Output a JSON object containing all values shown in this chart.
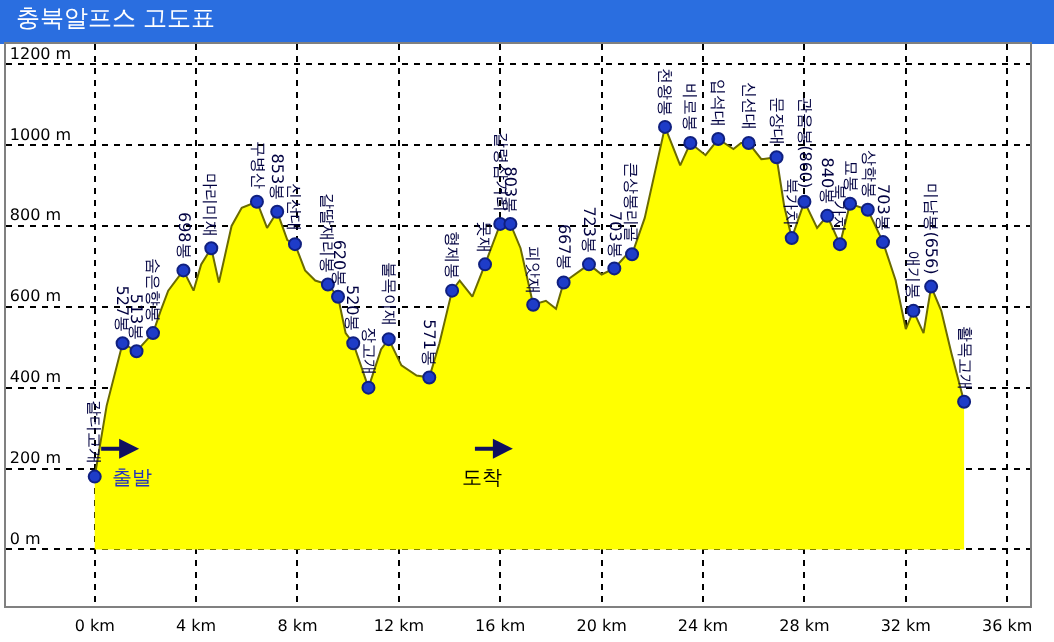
{
  "chart_data": {
    "type": "area",
    "title": "충북알프스 고도표",
    "x": [
      0,
      0.47,
      1.1,
      1.65,
      2.3,
      2.6,
      2.9,
      3.5,
      3.9,
      4.2,
      4.6,
      4.9,
      5.4,
      5.8,
      6.4,
      6.8,
      7.2,
      7.6,
      7.9,
      8.3,
      8.7,
      9.2,
      9.6,
      9.9,
      10.2,
      10.8,
      11.3,
      11.6,
      12.1,
      12.7,
      13.2,
      13.6,
      14.1,
      14.4,
      14.9,
      15.4,
      16,
      16.4,
      16.8,
      17.3,
      17.8,
      18.2,
      18.5,
      19.5,
      20,
      20.5,
      21,
      21.2,
      21.7,
      22.5,
      23.1,
      23.5,
      24.1,
      24.6,
      25.2,
      25.5,
      25.8,
      26.3,
      26.9,
      27.2,
      27.5,
      28,
      28.5,
      28.9,
      29.4,
      29.8,
      30.5,
      31.1,
      31.6,
      32,
      32.3,
      32.7,
      33,
      33.4,
      33.8,
      34.3
    ],
    "series": [
      {
        "color": "#ffff00",
        "values": [
          180,
          355,
          510,
          490,
          535,
          590,
          640,
          690,
          640,
          705,
          745,
          660,
          800,
          845,
          860,
          795,
          835,
          765,
          755,
          690,
          665,
          655,
          625,
          535,
          510,
          400,
          495,
          520,
          455,
          430,
          425,
          510,
          640,
          665,
          625,
          705,
          805,
          805,
          745,
          605,
          615,
          595,
          660,
          705,
          680,
          695,
          730,
          730,
          820,
          1045,
          950,
          1005,
          975,
          1015,
          990,
          1005,
          1005,
          965,
          970,
          850,
          770,
          860,
          795,
          825,
          755,
          855,
          840,
          760,
          665,
          545,
          590,
          535,
          650,
          590,
          485,
          365
        ]
      },
      {
        "type": "scatter",
        "marker": "circle",
        "color": "#1e3cc8",
        "x": [
          0,
          1.1,
          1.65,
          2.3,
          3.5,
          4.6,
          6.4,
          7.2,
          7.9,
          9.2,
          9.6,
          10.2,
          10.8,
          11.6,
          13.2,
          14.1,
          15.4,
          16,
          16.4,
          17.3,
          18.5,
          19.5,
          20.5,
          21.2,
          22.5,
          23.5,
          24.6,
          25.8,
          26.9,
          27.5,
          28,
          28.9,
          29.4,
          29.8,
          30.5,
          31.1,
          32.3,
          33,
          34.3
        ],
        "values": [
          180,
          510,
          490,
          535,
          690,
          745,
          860,
          835,
          755,
          655,
          625,
          510,
          400,
          520,
          425,
          640,
          705,
          805,
          805,
          605,
          660,
          705,
          695,
          730,
          1045,
          1005,
          1015,
          1005,
          970,
          770,
          860,
          825,
          755,
          855,
          840,
          760,
          590,
          650,
          365
        ]
      }
    ],
    "annotations": [
      "출발",
      "도착",
      {
        "text": "갈티고개",
        "x": 0,
        "y": 180
      },
      {
        "text": "527봉",
        "x": 1.1,
        "y": 510
      },
      {
        "text": "513봉",
        "x": 1.65,
        "y": 490
      },
      {
        "text": "숨은향봉",
        "x": 2.3,
        "y": 535
      },
      {
        "text": "698봉",
        "x": 3.5,
        "y": 690
      },
      {
        "text": "마리미재",
        "x": 4.6,
        "y": 745
      },
      {
        "text": "구병산",
        "x": 6.4,
        "y": 860
      },
      {
        "text": "853봉",
        "x": 7.2,
        "y": 835
      },
      {
        "text": "신선대",
        "x": 7.9,
        "y": 755
      },
      {
        "text": "갈딸재리봉",
        "x": 9.2,
        "y": 655
      },
      {
        "text": "620봉",
        "x": 9.6,
        "y": 625
      },
      {
        "text": "520봉",
        "x": 10.2,
        "y": 510
      },
      {
        "text": "장고개",
        "x": 10.8,
        "y": 400
      },
      {
        "text": "불목이재",
        "x": 11.6,
        "y": 520
      },
      {
        "text": "571봉",
        "x": 13.2,
        "y": 425
      },
      {
        "text": "형제봉",
        "x": 14.1,
        "y": 640
      },
      {
        "text": "못재",
        "x": 15.4,
        "y": 705
      },
      {
        "text": "갈령삼거리",
        "x": 16,
        "y": 805
      },
      {
        "text": "803봉",
        "x": 16.4,
        "y": 805
      },
      {
        "text": "피앗재",
        "x": 17.3,
        "y": 605
      },
      {
        "text": "667봉",
        "x": 18.5,
        "y": 660
      },
      {
        "text": "723봉",
        "x": 19.5,
        "y": 705
      },
      {
        "text": "703봉",
        "x": 20.5,
        "y": 695
      },
      {
        "text": "큰상봉리골",
        "x": 21.2,
        "y": 730
      },
      {
        "text": "천왕봉",
        "x": 22.5,
        "y": 1045
      },
      {
        "text": "비로봉",
        "x": 23.5,
        "y": 1005
      },
      {
        "text": "입석대",
        "x": 24.6,
        "y": 1015
      },
      {
        "text": "신선대",
        "x": 25.8,
        "y": 1005
      },
      {
        "text": "문장대",
        "x": 26.9,
        "y": 970
      },
      {
        "text": "북가치",
        "x": 27.5,
        "y": 770
      },
      {
        "text": "관음봉(860)",
        "x": 28,
        "y": 860
      },
      {
        "text": "840봉",
        "x": 28.9,
        "y": 825
      },
      {
        "text": "북가치",
        "x": 29.4,
        "y": 755
      },
      {
        "text": "묘봉",
        "x": 29.8,
        "y": 855
      },
      {
        "text": "상학봉",
        "x": 30.5,
        "y": 840
      },
      {
        "text": "703봉",
        "x": 31.1,
        "y": 760
      },
      {
        "text": "애기봉",
        "x": 32.3,
        "y": 590
      },
      {
        "text": "미남봉(656)",
        "x": 33,
        "y": 650
      },
      {
        "text": "활목고개",
        "x": 34.3,
        "y": 365
      }
    ],
    "xlim": [
      -3.5,
      36.9
    ],
    "ylim": [
      -140,
      1250
    ],
    "xticks": [
      {
        "value": 0,
        "label": "0 km"
      },
      {
        "value": 4,
        "label": "4 km"
      },
      {
        "value": 8,
        "label": "8 km"
      },
      {
        "value": 12,
        "label": "12 km"
      },
      {
        "value": 16,
        "label": "16 km"
      },
      {
        "value": 20,
        "label": "20 km"
      },
      {
        "value": 24,
        "label": "24 km"
      },
      {
        "value": 28,
        "label": "28 km"
      },
      {
        "value": 32,
        "label": "32 km"
      },
      {
        "value": 36,
        "label": "36 km"
      }
    ],
    "yticks": [
      {
        "value": 0,
        "label": "0 m"
      },
      {
        "value": 200,
        "label": "200 m"
      },
      {
        "value": 400,
        "label": "400 m"
      },
      {
        "value": 600,
        "label": "600 m"
      },
      {
        "value": 800,
        "label": "800 m"
      },
      {
        "value": 1000,
        "label": "1000 m"
      },
      {
        "value": 1200,
        "label": "1200 m"
      }
    ],
    "grid": true,
    "line_style": "dotted"
  }
}
